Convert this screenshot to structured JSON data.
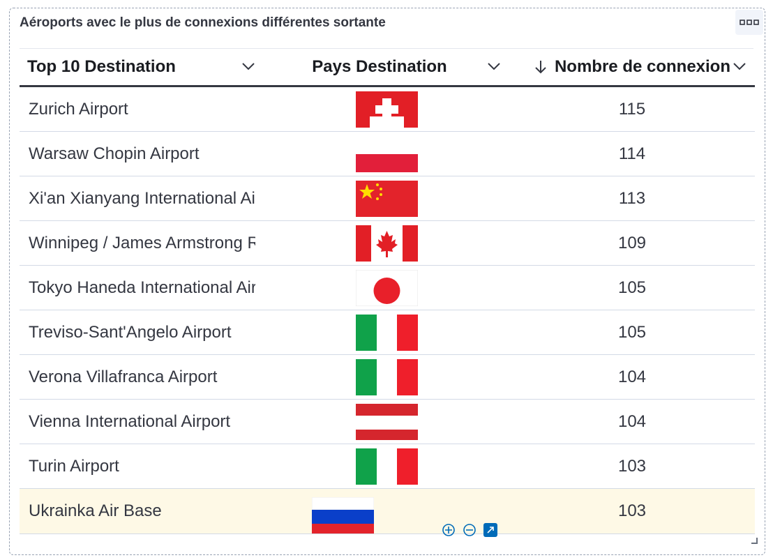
{
  "panel": {
    "title": "Aéroports avec le plus de connexions différentes sortante",
    "menu_icon": "ellipsis-icon"
  },
  "table": {
    "columns": [
      {
        "label": "Top 10 Destination"
      },
      {
        "label": "Pays Destination"
      },
      {
        "label": "Nombre de connexion",
        "sort": "descending"
      }
    ],
    "rows": [
      {
        "destination": "Zurich Airport",
        "flag": "switzerland",
        "count": "115"
      },
      {
        "destination": "Warsaw Chopin Airport",
        "flag": "poland",
        "count": "114"
      },
      {
        "destination": "Xi'an Xianyang International Airport",
        "flag": "china",
        "count": "113"
      },
      {
        "destination": "Winnipeg / James Armstrong Richardson International Airport",
        "flag": "canada",
        "count": "109"
      },
      {
        "destination": "Tokyo Haneda International Airport",
        "flag": "japan",
        "count": "105"
      },
      {
        "destination": "Treviso-Sant'Angelo Airport",
        "flag": "italy",
        "count": "105"
      },
      {
        "destination": "Verona Villafranca Airport",
        "flag": "italy",
        "count": "104"
      },
      {
        "destination": "Vienna International Airport",
        "flag": "austria",
        "count": "104"
      },
      {
        "destination": "Turin Airport",
        "flag": "italy",
        "count": "103"
      },
      {
        "destination": "Ukrainka Air Base",
        "flag": "russia",
        "count": "103"
      }
    ],
    "highlighted_row": 9
  },
  "colors": {
    "highlight": "#fef9e6",
    "accent": "#006bb8",
    "text": "#343741"
  }
}
